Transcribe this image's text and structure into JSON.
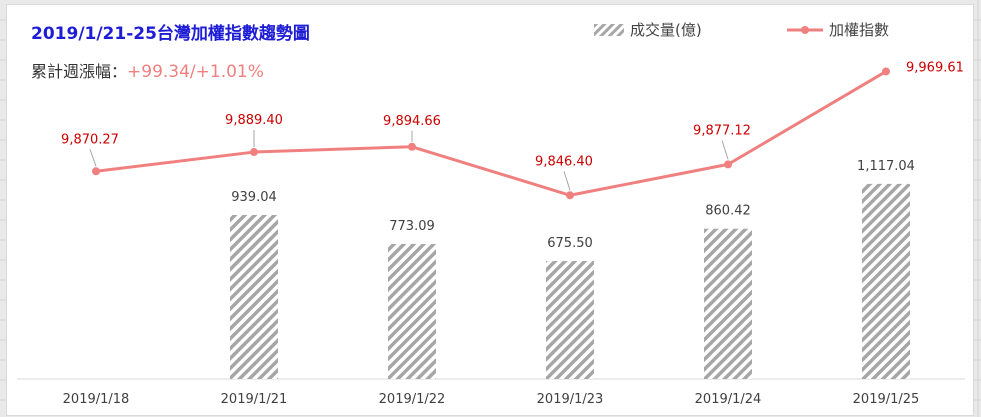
{
  "title": "2019/1/21-25台灣加權指數趨勢圖",
  "subtitle": {
    "label": "累計週漲幅：",
    "value": "+99.34/+1.01%"
  },
  "legend": {
    "bar_label": "成交量(億)",
    "line_label": "加權指數"
  },
  "colors": {
    "line": "#f08080",
    "line_label": "#cc0000",
    "bar_stripe": "#a6a6a6",
    "bar_label": "#404040",
    "title": "#1d1dd6"
  },
  "chart_data": {
    "type": "bar+line",
    "categories": [
      "2019/1/18",
      "2019/1/21",
      "2019/1/22",
      "2019/1/23",
      "2019/1/24",
      "2019/1/25"
    ],
    "series": [
      {
        "name": "成交量(億)",
        "type": "bar",
        "values": [
          null,
          939.04,
          773.09,
          675.5,
          860.42,
          1117.04
        ],
        "labels": [
          "",
          "939.04",
          "773.09",
          "675.50",
          "860.42",
          "1,117.04"
        ]
      },
      {
        "name": "加權指數",
        "type": "line",
        "values": [
          9870.27,
          9889.4,
          9894.66,
          9846.4,
          9877.12,
          9969.61
        ],
        "labels": [
          "9,870.27",
          "9,889.40",
          "9,894.66",
          "9,846.40",
          "9,877.12",
          "9,969.61"
        ]
      }
    ],
    "bar_ylim": [
      0,
      1500
    ],
    "line_ylim": [
      9780,
      9980
    ],
    "legend_position": "top-right"
  }
}
